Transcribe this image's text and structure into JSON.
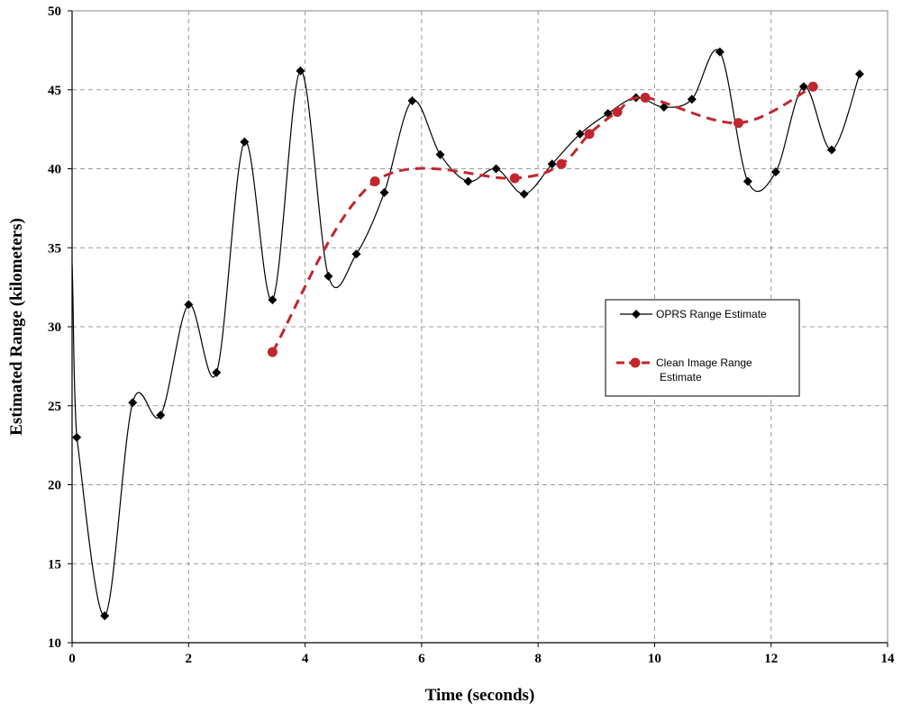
{
  "chart_data": {
    "type": "line",
    "title": "",
    "xlabel": "Time (seconds)",
    "ylabel": "Estimated Range (kilometers)",
    "xlim": [
      0,
      14
    ],
    "ylim": [
      10,
      50
    ],
    "xticks": [
      0,
      2,
      4,
      6,
      8,
      10,
      12,
      14
    ],
    "yticks": [
      10,
      15,
      20,
      25,
      30,
      35,
      40,
      45,
      50
    ],
    "grid": true,
    "legend_position": "right",
    "series": [
      {
        "name": "OPRS Range  Estimate",
        "color": "#000000",
        "marker": "diamond",
        "line_style": "solid",
        "smooth": true,
        "x": [
          0.08,
          0.56,
          1.04,
          1.52,
          2.0,
          2.48,
          2.96,
          3.44,
          3.92,
          4.4,
          4.88,
          5.36,
          5.84,
          6.32,
          6.8,
          7.28,
          7.76,
          8.24,
          8.72,
          9.2,
          9.68,
          10.16,
          10.64,
          11.12,
          11.6,
          12.08,
          12.56,
          13.04,
          13.52
        ],
        "y": [
          23.0,
          11.7,
          25.2,
          24.4,
          31.4,
          27.1,
          41.7,
          31.7,
          46.2,
          33.2,
          34.6,
          38.5,
          44.3,
          40.9,
          39.2,
          40.0,
          38.4,
          40.3,
          42.2,
          43.5,
          44.5,
          43.9,
          44.4,
          47.4,
          39.2,
          39.8,
          45.2,
          41.2,
          46.0
        ]
      },
      {
        "name": "Clean Image  Range Estimate",
        "color": "#c0272d",
        "marker": "circle",
        "line_style": "dashed",
        "smooth": true,
        "x": [
          3.44,
          5.2,
          7.6,
          8.4,
          8.88,
          9.36,
          9.84,
          11.44,
          12.72
        ],
        "y": [
          28.4,
          39.2,
          39.4,
          40.3,
          42.2,
          43.6,
          44.5,
          42.9,
          45.2
        ]
      }
    ]
  }
}
